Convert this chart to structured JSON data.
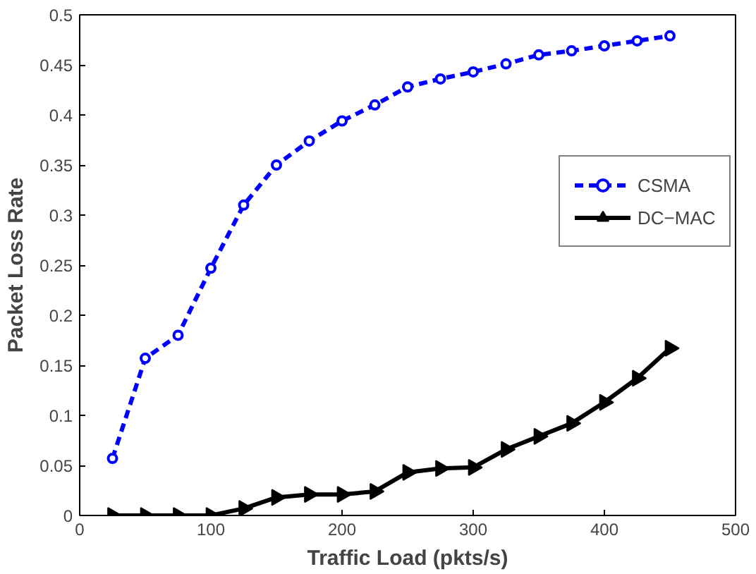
{
  "chart_data": {
    "type": "line",
    "xlabel": "Traffic Load (pkts/s)",
    "ylabel": "Packet Loss Rate",
    "x": [
      25,
      50,
      75,
      100,
      125,
      150,
      175,
      200,
      225,
      250,
      275,
      300,
      325,
      350,
      375,
      400,
      425,
      450
    ],
    "xlim": [
      0,
      500
    ],
    "xticks": [
      0,
      100,
      200,
      300,
      400,
      500
    ],
    "ylim": [
      0,
      0.5
    ],
    "yticks": [
      0,
      0.05,
      0.1,
      0.15,
      0.2,
      0.25,
      0.3,
      0.35,
      0.4,
      0.45,
      0.5
    ],
    "grid": false,
    "legend": "right",
    "series": [
      {
        "name": "CSMA",
        "color": "#0000ff",
        "marker": "circle",
        "line_style": "dashed",
        "values": [
          0.057,
          0.157,
          0.18,
          0.247,
          0.31,
          0.35,
          0.374,
          0.394,
          0.41,
          0.428,
          0.436,
          0.443,
          0.451,
          0.46,
          0.464,
          0.469,
          0.474,
          0.479
        ]
      },
      {
        "name": "DC−MAC",
        "color": "#000000",
        "marker": "triangle",
        "line_style": "solid",
        "values": [
          0,
          0,
          0,
          0,
          0.007,
          0.018,
          0.021,
          0.021,
          0.024,
          0.043,
          0.047,
          0.048,
          0.066,
          0.079,
          0.092,
          0.113,
          0.137,
          0.167
        ]
      }
    ]
  }
}
